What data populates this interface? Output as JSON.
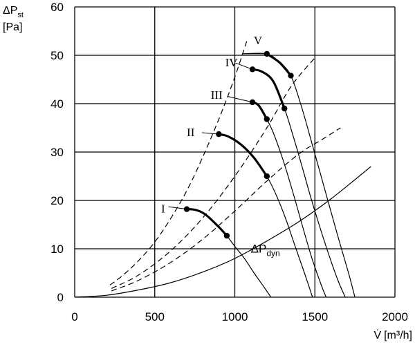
{
  "chart_data": {
    "type": "line",
    "title": "",
    "ylabel": "ΔPst [Pa]",
    "ylabel_main": "ΔP",
    "ylabel_sub": "st",
    "ylabel_unit": "[Pa]",
    "xlabel": "V̇ [m³/h]",
    "xlabel_main": "V̇",
    "xlabel_unit": "[m³/h]",
    "xlim": [
      0,
      2000
    ],
    "ylim": [
      0,
      60
    ],
    "x_ticks": [
      0,
      500,
      1000,
      1500,
      2000
    ],
    "y_ticks": [
      0,
      10,
      20,
      30,
      40,
      50,
      60
    ],
    "grid": true,
    "series": [
      {
        "name": "I",
        "style": "solid",
        "points": [
          [
            700,
            18.2
          ],
          [
            760,
            18.0
          ],
          [
            820,
            17.0
          ],
          [
            900,
            14.5
          ],
          [
            950,
            12.7
          ],
          [
            1000,
            10.5
          ],
          [
            1060,
            8.0
          ],
          [
            1120,
            5.0
          ],
          [
            1180,
            2.2
          ],
          [
            1225,
            0
          ]
        ]
      },
      {
        "name": "II",
        "style": "solid",
        "points": [
          [
            900,
            33.7
          ],
          [
            960,
            33.2
          ],
          [
            1040,
            31.5
          ],
          [
            1120,
            28.8
          ],
          [
            1200,
            25.0
          ],
          [
            1260,
            21.0
          ],
          [
            1320,
            16.0
          ],
          [
            1380,
            10.2
          ],
          [
            1440,
            4.5
          ],
          [
            1485,
            0
          ]
        ]
      },
      {
        "name": "III",
        "style": "solid",
        "points": [
          [
            1110,
            40.3
          ],
          [
            1150,
            39.6
          ],
          [
            1200,
            36.8
          ],
          [
            1240,
            34.0
          ],
          [
            1300,
            28.5
          ],
          [
            1360,
            22.0
          ],
          [
            1420,
            15.0
          ],
          [
            1480,
            8.2
          ],
          [
            1540,
            2.5
          ],
          [
            1570,
            0
          ]
        ]
      },
      {
        "name": "IV",
        "style": "solid",
        "points": [
          [
            1110,
            47.1
          ],
          [
            1170,
            46.6
          ],
          [
            1240,
            44.6
          ],
          [
            1310,
            39.0
          ],
          [
            1360,
            33.8
          ],
          [
            1420,
            27.0
          ],
          [
            1480,
            20.0
          ],
          [
            1560,
            11.5
          ],
          [
            1640,
            3.8
          ],
          [
            1690,
            0
          ]
        ]
      },
      {
        "name": "V",
        "style": "solid",
        "points": [
          [
            1050,
            50.3
          ],
          [
            1200,
            50.3
          ],
          [
            1280,
            48.5
          ],
          [
            1350,
            45.8
          ],
          [
            1420,
            39.0
          ],
          [
            1480,
            32.0
          ],
          [
            1560,
            22.5
          ],
          [
            1640,
            13.0
          ],
          [
            1710,
            5.0
          ],
          [
            1750,
            0
          ]
        ]
      },
      {
        "name": "ΔPdyn",
        "style": "solid",
        "points": [
          [
            0,
            0
          ],
          [
            200,
            0.4
          ],
          [
            400,
            1.5
          ],
          [
            600,
            3.0
          ],
          [
            800,
            5.2
          ],
          [
            1000,
            8.0
          ],
          [
            1200,
            11.6
          ],
          [
            1400,
            15.6
          ],
          [
            1600,
            20.3
          ],
          [
            1850,
            27.0
          ]
        ]
      },
      {
        "name": "",
        "style": "dashed",
        "points": [
          [
            220,
            2.5
          ],
          [
            300,
            4.5
          ],
          [
            400,
            7.6
          ],
          [
            500,
            11.4
          ],
          [
            600,
            16.3
          ],
          [
            700,
            22.0
          ],
          [
            800,
            29.0
          ],
          [
            900,
            36.8
          ],
          [
            1000,
            45.5
          ],
          [
            1080,
            53.5
          ]
        ]
      },
      {
        "name": "",
        "style": "dashed",
        "points": [
          [
            230,
            1.8
          ],
          [
            400,
            4.6
          ],
          [
            600,
            9.6
          ],
          [
            800,
            16.4
          ],
          [
            1000,
            25.0
          ],
          [
            1200,
            35.0
          ],
          [
            1350,
            43.5
          ],
          [
            1500,
            49.5
          ]
        ]
      },
      {
        "name": "",
        "style": "dashed",
        "points": [
          [
            230,
            1.3
          ],
          [
            400,
            3.5
          ],
          [
            600,
            7.2
          ],
          [
            800,
            12.0
          ],
          [
            1000,
            17.8
          ],
          [
            1200,
            24.0
          ],
          [
            1400,
            29.6
          ],
          [
            1550,
            32.7
          ],
          [
            1660,
            35.0
          ]
        ]
      }
    ],
    "bold_segments": [
      {
        "series": "I",
        "points": [
          [
            700,
            18.2
          ],
          [
            760,
            18.0
          ],
          [
            820,
            17.0
          ],
          [
            900,
            14.5
          ],
          [
            950,
            12.7
          ]
        ]
      },
      {
        "series": "II",
        "points": [
          [
            900,
            33.7
          ],
          [
            960,
            33.2
          ],
          [
            1040,
            31.5
          ],
          [
            1120,
            28.8
          ],
          [
            1200,
            25.0
          ]
        ]
      },
      {
        "series": "III",
        "points": [
          [
            1110,
            40.3
          ],
          [
            1150,
            39.6
          ],
          [
            1200,
            36.8
          ]
        ]
      },
      {
        "series": "IV",
        "points": [
          [
            1110,
            47.1
          ],
          [
            1170,
            46.6
          ],
          [
            1240,
            44.6
          ],
          [
            1310,
            39.0
          ]
        ]
      },
      {
        "series": "V",
        "points": [
          [
            1200,
            50.3
          ],
          [
            1280,
            48.5
          ],
          [
            1350,
            45.8
          ]
        ]
      }
    ],
    "markers": [
      [
        700,
        18.2
      ],
      [
        950,
        12.7
      ],
      [
        900,
        33.7
      ],
      [
        1200,
        25.0
      ],
      [
        1110,
        40.3
      ],
      [
        1200,
        36.8
      ],
      [
        1110,
        47.1
      ],
      [
        1310,
        39.0
      ],
      [
        1200,
        50.3
      ],
      [
        1350,
        45.8
      ]
    ],
    "curve_labels": [
      {
        "text": "I",
        "x": 540,
        "y": 17.5,
        "leader": [
          [
            585,
            18.7
          ],
          [
            700,
            18.2
          ]
        ]
      },
      {
        "text": "II",
        "x": 700,
        "y": 33.3,
        "leader": [
          [
            795,
            34.0
          ],
          [
            900,
            33.7
          ]
        ]
      },
      {
        "text": "III",
        "x": 850,
        "y": 41.0,
        "leader": [
          [
            955,
            41.5
          ],
          [
            1110,
            40.3
          ]
        ]
      },
      {
        "text": "IV",
        "x": 940,
        "y": 47.7,
        "leader": [
          [
            1005,
            48.4
          ],
          [
            1110,
            47.1
          ]
        ]
      },
      {
        "text": "V",
        "x": 1118,
        "y": 52.3,
        "leader": [
          [
            1050,
            50.3
          ],
          [
            1200,
            50.3
          ]
        ]
      }
    ],
    "annotations": [
      {
        "text": "ΔP",
        "sub": "dyn",
        "x": 1100,
        "y": 9.2,
        "leader": [
          [
            1070,
            8.4
          ],
          [
            1150,
            9.0
          ]
        ]
      }
    ]
  }
}
